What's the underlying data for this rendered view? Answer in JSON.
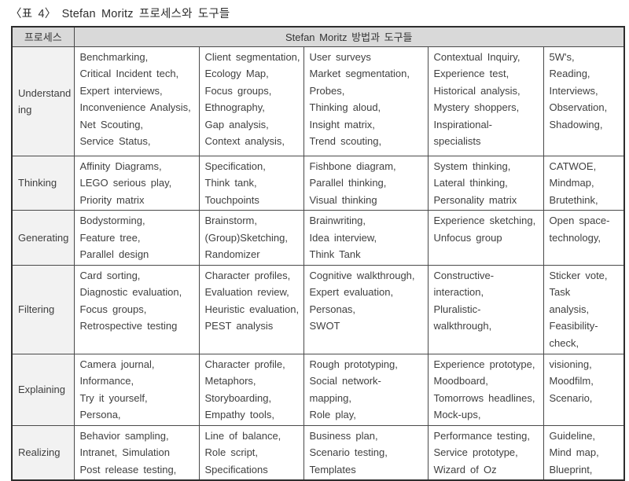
{
  "page": {
    "title": "〈표 4〉 Stefan Moritz 프로세스와 도구들"
  },
  "table": {
    "header": {
      "process": "프로세스",
      "tools": "Stefan Moritz 방법과 도구들"
    },
    "rows": [
      {
        "process": "Understanding",
        "cells": [
          "Benchmarking,\nCritical Incident tech,\nExpert interviews,\nInconvenience Analysis,\nNet Scouting,\nService Status,",
          "Client segmentation,\nEcology Map,\nFocus groups,\nEthnography,\nGap analysis,\nContext analysis,",
          "User surveys\nMarket segmentation,\nProbes,\nThinking aloud,\nInsight matrix,\nTrend scouting,",
          "Contextual Inquiry,\nExperience test,\nHistorical analysis,\nMystery shoppers,\nInspirational-\nspecialists",
          "5W's,\nReading,\nInterviews,\nObservation,\nShadowing,"
        ]
      },
      {
        "process": "Thinking",
        "cells": [
          "Affinity Diagrams,\nLEGO serious play,\nPriority matrix",
          "Specification,\nThink tank,\nTouchpoints",
          "Fishbone diagram,\nParallel thinking,\nVisual thinking",
          "System thinking,\nLateral thinking,\nPersonality matrix",
          "CATWOE,\nMindmap,\nBrutethink,"
        ]
      },
      {
        "process": "Generating",
        "cells": [
          "Bodystorming,\nFeature tree,\nParallel design",
          "Brainstorm,\n(Group)Sketching,\nRandomizer",
          "Brainwriting,\nIdea interview,\nThink Tank",
          "Experience sketching,\nUnfocus group",
          "Open space-\ntechnology,"
        ]
      },
      {
        "process": "Filtering",
        "cells": [
          "Card sorting,\nDiagnostic evaluation,\nFocus groups,\nRetrospective testing",
          "Character profiles,\nEvaluation review,\nHeuristic evaluation,\nPEST analysis",
          "Cognitive walkthrough,\nExpert evaluation,\nPersonas,\nSWOT",
          "Constructive-\ninteraction,\nPluralistic-\nwalkthrough,",
          "Sticker vote,\nTask\nanalysis,\nFeasibility-\ncheck,"
        ]
      },
      {
        "process": "Explaining",
        "cells": [
          "Camera journal,\nInformance,\nTry it yourself,\nPersona,",
          "Character profile,\nMetaphors,\nStoryboarding,\nEmpathy tools,",
          "Rough prototyping,\nSocial network-\nmapping,\nRole play,",
          "Experience prototype,\nMoodboard,\nTomorrows headlines,\nMock-ups,",
          "visioning,\nMoodfilm,\nScenario,"
        ]
      },
      {
        "process": "Realizing",
        "cells": [
          "Behavior sampling,\nIntranet, Simulation\nPost release testing,",
          "Line of balance,\nRole script,\nSpecifications",
          "Business plan,\nScenario testing,\nTemplates",
          "Performance testing,\nService prototype,\nWizard of Oz",
          "Guideline,\nMind map,\nBlueprint,"
        ]
      }
    ]
  }
}
